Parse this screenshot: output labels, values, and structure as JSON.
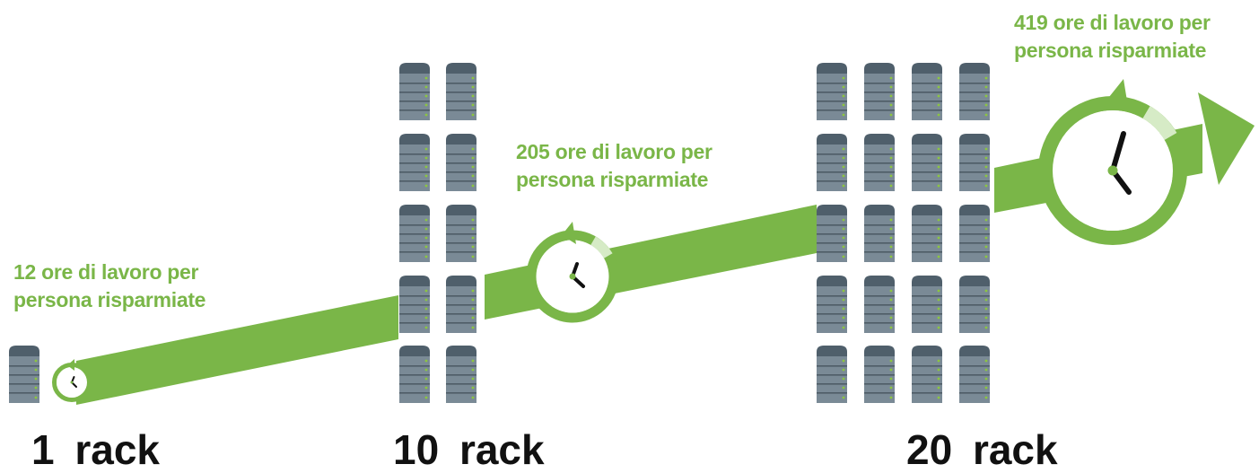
{
  "colors": {
    "accent_green": "#7ab648",
    "light_green": "#d6ebc6",
    "server_body": "#7a8a96",
    "server_top": "#4f5f6b",
    "server_led": "#8cc63f",
    "label_dark": "#111111"
  },
  "icons": {
    "server": "server-rack-icon",
    "clock": "clock-icon",
    "arrow": "growth-arrow-icon"
  },
  "stages": [
    {
      "rack_label": "1  rack",
      "caption_line1": "12 ore di lavoro per",
      "caption_line2": "persona risparmiate"
    },
    {
      "rack_label": "10  rack",
      "caption_line1": "205 ore di lavoro per",
      "caption_line2": "persona risparmiate"
    },
    {
      "rack_label": "20  rack",
      "caption_line1": "419 ore di lavoro per",
      "caption_line2": "persona risparmiate"
    }
  ]
}
